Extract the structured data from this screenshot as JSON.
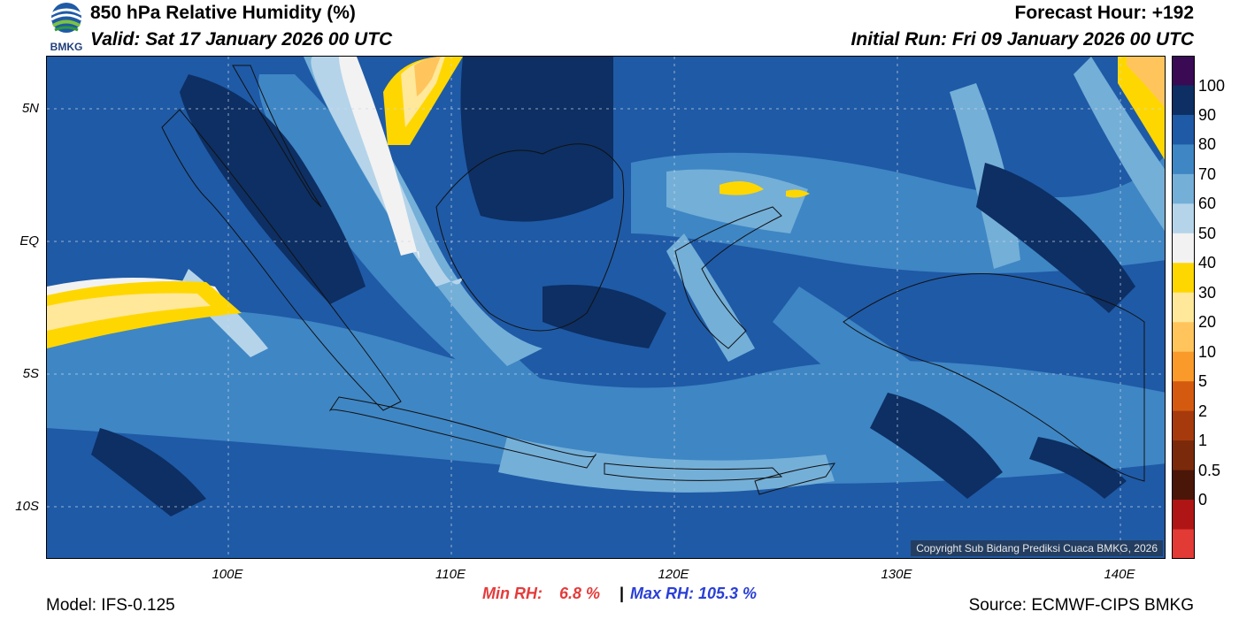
{
  "header": {
    "title": "850 hPa Relative Humidity (%)",
    "valid": "Valid: Sat 17 January 2026 00 UTC",
    "forecast_hour": "Forecast Hour: +192",
    "initial_run": "Initial Run: Fri 09 January 2026 00 UTC",
    "logo_text": "BMKG"
  },
  "axes": {
    "lat_labels": [
      "5N",
      "EQ",
      "5S",
      "10S"
    ],
    "lon_labels": [
      "100E",
      "110E",
      "120E",
      "130E",
      "140E"
    ]
  },
  "colorbar": {
    "labels": [
      "100",
      "90",
      "80",
      "70",
      "60",
      "50",
      "40",
      "30",
      "20",
      "10",
      "5",
      "2",
      "1",
      "0.5",
      "0"
    ],
    "colors": [
      "#3a0a55",
      "#0d2f63",
      "#1f5aa6",
      "#3f86c4",
      "#74afd8",
      "#b5d4ea",
      "#f2f2f2",
      "#ffd700",
      "#ffe89a",
      "#ffc55c",
      "#f99a2a",
      "#d45a10",
      "#a63a0c",
      "#7a2a0a",
      "#4a1608",
      "#b01515",
      "#e23a35"
    ]
  },
  "map": {
    "copyright": "Copyright Sub Bidang Prediksi Cuaca BMKG, 2026",
    "colors": {
      "deep": "#0d2f63",
      "dark": "#1f5aa6",
      "mid": "#3f86c4",
      "light": "#74afd8",
      "pale": "#b5d4ea",
      "white": "#f2f2f2",
      "yellow": "#ffd700",
      "cream": "#ffe89a",
      "orange": "#ffc55c"
    }
  },
  "footer": {
    "model": "Model: IFS-0.125",
    "min_rh_label": "Min RH:",
    "min_rh_value": "6.8 %",
    "separator": "|",
    "max_rh": "Max RH: 105.3 %",
    "source": "Source: ECMWF-CIPS BMKG"
  }
}
